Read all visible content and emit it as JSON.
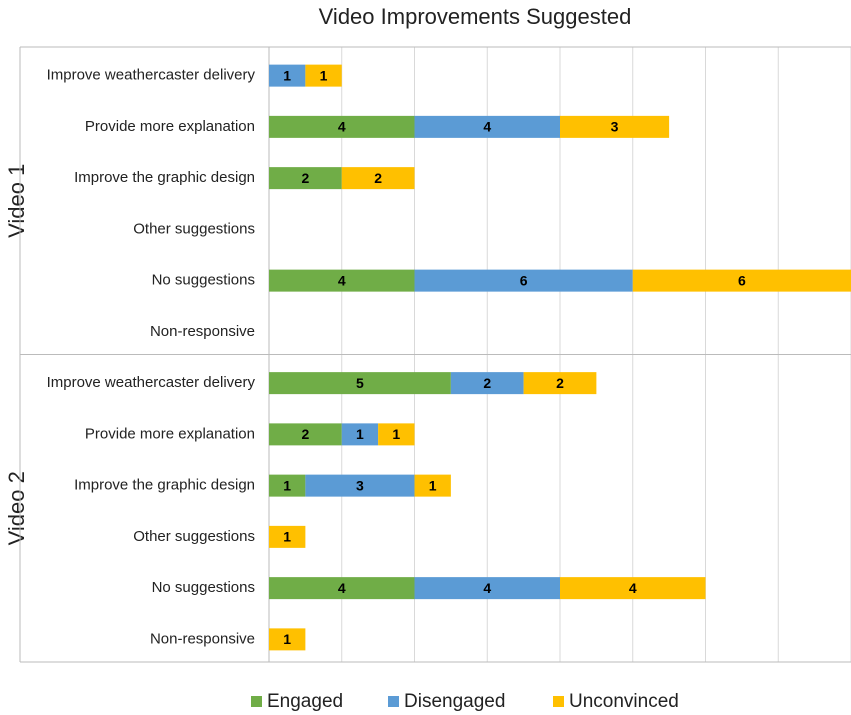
{
  "chart_data": {
    "type": "stacked-bar",
    "orientation": "horizontal",
    "title": "Video Improvements Suggested",
    "groups": [
      {
        "name": "Video 1",
        "categories": [
          "Improve weathercaster delivery",
          "Provide more explanation",
          "Improve the graphic design",
          "Other suggestions",
          "No suggestions",
          "Non-responsive"
        ]
      },
      {
        "name": "Video 2",
        "categories": [
          "Improve weathercaster delivery",
          "Provide more explanation",
          "Improve the graphic design",
          "Other suggestions",
          "No suggestions",
          "Non-responsive"
        ]
      }
    ],
    "series": [
      {
        "name": "Engaged",
        "color": "#70ad47",
        "values": [
          null,
          4,
          2,
          null,
          4,
          null,
          5,
          2,
          1,
          null,
          4,
          null
        ]
      },
      {
        "name": "Disengaged",
        "color": "#5b9bd5",
        "values": [
          1,
          4,
          null,
          null,
          6,
          null,
          2,
          1,
          3,
          null,
          4,
          null
        ]
      },
      {
        "name": "Unconvinced",
        "color": "#ffc000",
        "values": [
          1,
          3,
          2,
          null,
          6,
          null,
          2,
          1,
          1,
          1,
          4,
          1
        ]
      }
    ],
    "xlim": [
      0,
      16
    ],
    "xticks": [
      0,
      2,
      4,
      6,
      8,
      10,
      12,
      14,
      16
    ],
    "grid": true,
    "legend": "bottom"
  }
}
